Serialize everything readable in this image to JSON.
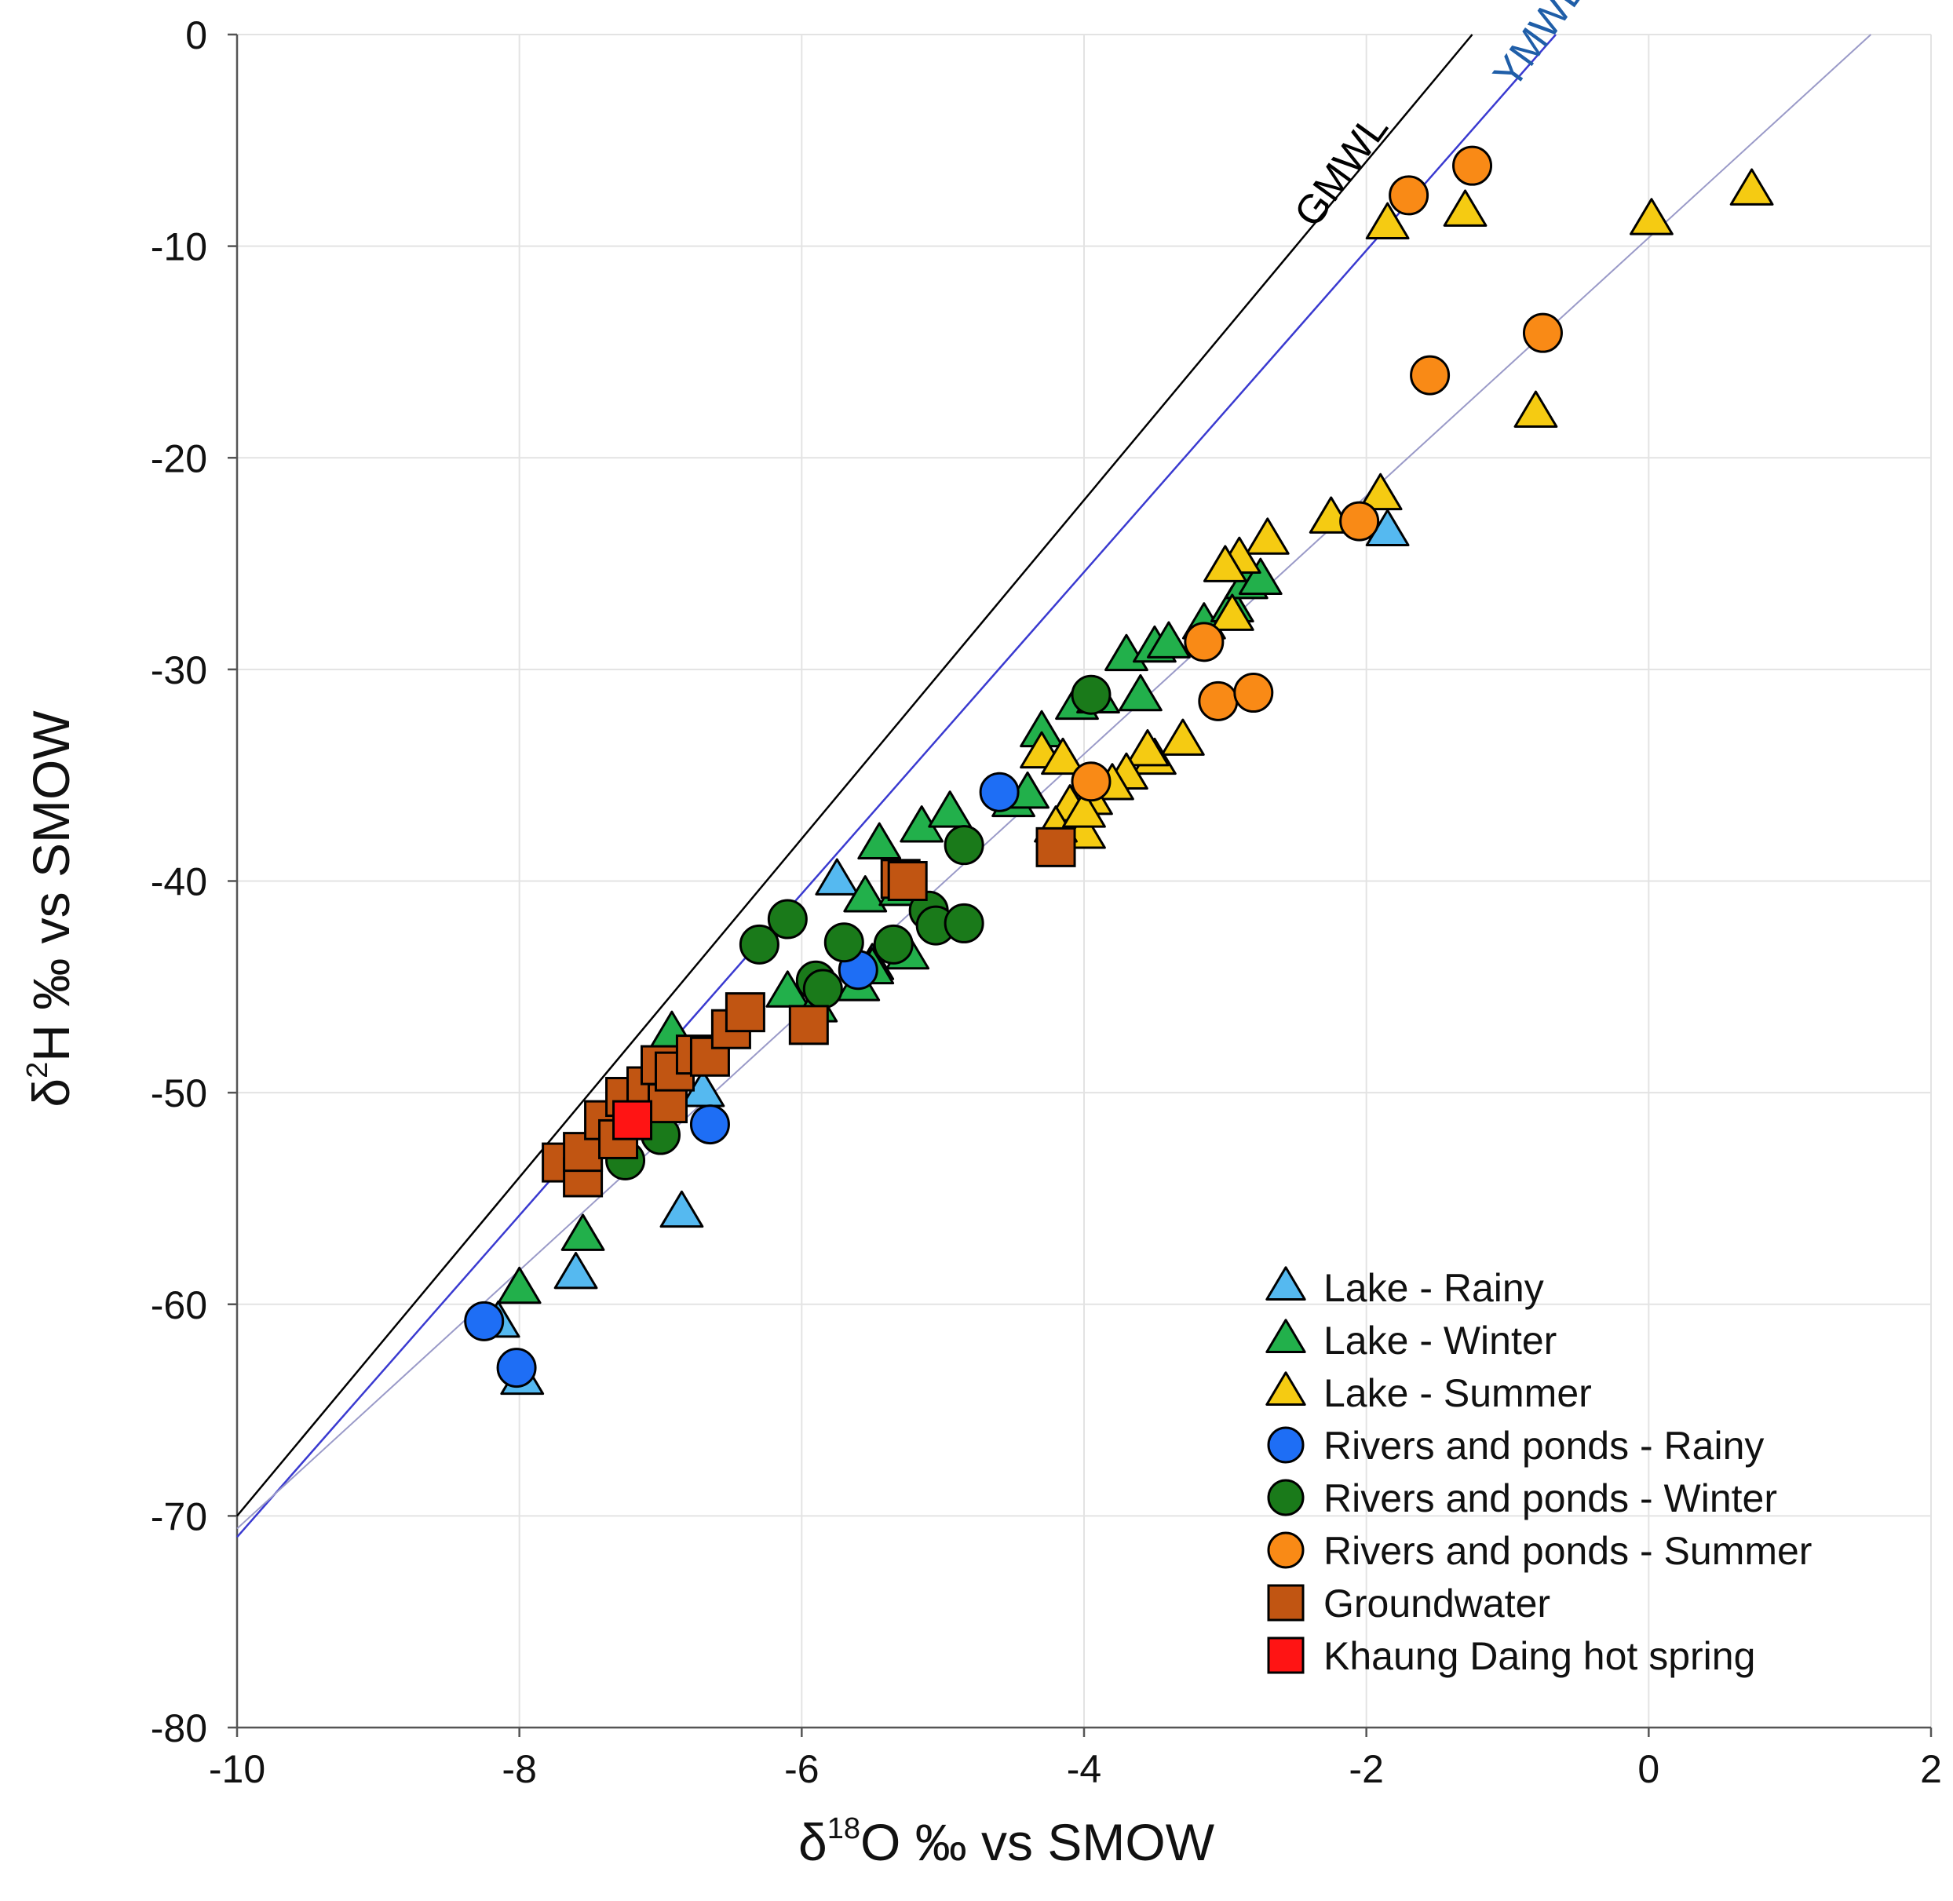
{
  "chart_data": {
    "type": "scatter",
    "xlabel": "δ18O ‰ vs SMOW",
    "ylabel": "δ2H ‰ vs SMOW",
    "xlabel_parts": {
      "prefix": "δ",
      "sup": "18",
      "suffix": "O ‰ vs SMOW"
    },
    "ylabel_parts": {
      "prefix": "δ",
      "sup": "2",
      "suffix": "H ‰ vs SMOW"
    },
    "xlim": [
      -10,
      2
    ],
    "ylim": [
      -80,
      0
    ],
    "x_ticks": [
      -10,
      -8,
      -6,
      -4,
      -2,
      0,
      2
    ],
    "y_ticks": [
      0,
      -10,
      -20,
      -30,
      -40,
      -50,
      -60,
      -70,
      -80
    ],
    "x_tick_labels": [
      "-10",
      "-8",
      "-6",
      "-4",
      "-2",
      "0",
      "2"
    ],
    "y_tick_labels": [
      "0",
      "-10",
      "-20",
      "-30",
      "-40",
      "-50",
      "-60",
      "-70",
      "-80"
    ],
    "grid": true,
    "legend_position": "bottom-right",
    "reference_lines": [
      {
        "name": "GMWL",
        "slope": 8,
        "intercept": 10,
        "color": "#000000",
        "label_color": "#000000",
        "label_at_x": -2.1,
        "rotate": -54
      },
      {
        "name": "YMWL",
        "slope": 7.6,
        "intercept": 5,
        "color": "#3a3ad0",
        "label_color": "#1f5ea8",
        "label_at_x": -0.7,
        "rotate": -54
      },
      {
        "name": "",
        "slope": 6.1,
        "intercept": -9.6,
        "color": "#9a9ac8",
        "label_color": "#9a9ac8",
        "label_at_x": 0,
        "rotate": 0
      }
    ],
    "series": [
      {
        "name": "Lake - Rainy",
        "marker": "triangle",
        "color": "#55b9f0",
        "points": [
          [
            -8.15,
            -60.9
          ],
          [
            -7.98,
            -63.6
          ],
          [
            -7.6,
            -58.6
          ],
          [
            -6.85,
            -55.7
          ],
          [
            -6.7,
            -50.0
          ],
          [
            -5.75,
            -40.0
          ],
          [
            -1.85,
            -23.5
          ],
          [
            -5.5,
            -44.0
          ]
        ]
      },
      {
        "name": "Lake - Winter",
        "marker": "triangle",
        "color": "#22b04b",
        "points": [
          [
            -8.0,
            -59.3
          ],
          [
            -7.55,
            -56.8
          ],
          [
            -6.92,
            -47.2
          ],
          [
            -6.1,
            -45.3
          ],
          [
            -5.9,
            -46.0
          ],
          [
            -5.6,
            -45.0
          ],
          [
            -5.5,
            -44.2
          ],
          [
            -5.55,
            -40.8
          ],
          [
            -5.45,
            -38.3
          ],
          [
            -5.3,
            -40.5
          ],
          [
            -5.25,
            -43.5
          ],
          [
            -5.15,
            -37.5
          ],
          [
            -4.95,
            -36.8
          ],
          [
            -4.5,
            -36.3
          ],
          [
            -4.4,
            -35.9
          ],
          [
            -4.3,
            -33.0
          ],
          [
            -4.05,
            -31.7
          ],
          [
            -3.9,
            -31.4
          ],
          [
            -3.7,
            -29.4
          ],
          [
            -3.6,
            -31.3
          ],
          [
            -3.5,
            -29.0
          ],
          [
            -3.4,
            -28.8
          ],
          [
            -3.15,
            -27.9
          ],
          [
            -2.95,
            -27.1
          ],
          [
            -2.85,
            -26.0
          ],
          [
            -2.75,
            -25.8
          ]
        ]
      },
      {
        "name": "Lake - Summer",
        "marker": "triangle",
        "color": "#f5cb12",
        "points": [
          [
            -1.85,
            -9.0
          ],
          [
            -1.3,
            -8.4
          ],
          [
            0.02,
            -8.8
          ],
          [
            0.73,
            -7.4
          ],
          [
            -0.8,
            -17.9
          ],
          [
            -1.9,
            -21.8
          ],
          [
            -2.25,
            -22.9
          ],
          [
            -2.7,
            -23.9
          ],
          [
            -2.9,
            -24.8
          ],
          [
            -3.0,
            -25.2
          ],
          [
            -2.95,
            -27.5
          ],
          [
            -3.3,
            -33.4
          ],
          [
            -3.5,
            -34.3
          ],
          [
            -3.55,
            -33.9
          ],
          [
            -3.7,
            -35.0
          ],
          [
            -3.8,
            -35.5
          ],
          [
            -3.95,
            -36.2
          ],
          [
            -4.0,
            -37.8
          ],
          [
            -4.1,
            -36.5
          ],
          [
            -4.2,
            -37.5
          ],
          [
            -4.3,
            -34.0
          ],
          [
            -4.15,
            -34.3
          ],
          [
            -4.0,
            -36.8
          ]
        ]
      },
      {
        "name": "Rivers and ponds - Rainy",
        "marker": "circle",
        "color": "#1e6ef5",
        "points": [
          [
            -8.25,
            -60.8
          ],
          [
            -8.02,
            -63.0
          ],
          [
            -6.65,
            -51.5
          ],
          [
            -4.6,
            -35.8
          ],
          [
            -5.6,
            -44.2
          ]
        ]
      },
      {
        "name": "Rivers and ponds - Winter",
        "marker": "circle",
        "color": "#1a7a1a",
        "points": [
          [
            -7.25,
            -53.2
          ],
          [
            -7.0,
            -52.0
          ],
          [
            -7.0,
            -49.4
          ],
          [
            -6.3,
            -43.0
          ],
          [
            -6.1,
            -41.8
          ],
          [
            -5.9,
            -44.7
          ],
          [
            -5.85,
            -45.1
          ],
          [
            -5.7,
            -42.9
          ],
          [
            -5.35,
            -43.0
          ],
          [
            -5.1,
            -41.4
          ],
          [
            -5.05,
            -42.1
          ],
          [
            -4.85,
            -42.0
          ],
          [
            -4.85,
            -38.3
          ],
          [
            -3.95,
            -31.2
          ]
        ]
      },
      {
        "name": "Rivers and ponds - Summer",
        "marker": "circle",
        "color": "#f98a16",
        "points": [
          [
            -1.7,
            -7.6
          ],
          [
            -1.25,
            -6.2
          ],
          [
            -1.55,
            -16.1
          ],
          [
            -0.75,
            -14.1
          ],
          [
            -2.05,
            -23.0
          ],
          [
            -3.15,
            -28.7
          ],
          [
            -3.05,
            -31.5
          ],
          [
            -2.8,
            -31.1
          ],
          [
            -3.95,
            -35.3
          ]
        ]
      },
      {
        "name": "Groundwater",
        "marker": "square",
        "color": "#c15512",
        "points": [
          [
            -7.7,
            -53.3
          ],
          [
            -7.55,
            -54.0
          ],
          [
            -7.55,
            -52.8
          ],
          [
            -7.4,
            -51.3
          ],
          [
            -7.3,
            -52.2
          ],
          [
            -7.25,
            -50.2
          ],
          [
            -7.1,
            -49.7
          ],
          [
            -7.0,
            -48.7
          ],
          [
            -6.95,
            -50.5
          ],
          [
            -6.9,
            -49.0
          ],
          [
            -6.75,
            -48.2
          ],
          [
            -6.65,
            -48.3
          ],
          [
            -6.5,
            -47.0
          ],
          [
            -6.4,
            -46.2
          ],
          [
            -5.95,
            -46.8
          ],
          [
            -5.3,
            -39.9
          ],
          [
            -5.25,
            -40.0
          ],
          [
            -4.2,
            -38.4
          ]
        ]
      },
      {
        "name": "Khaung Daing hot spring",
        "marker": "square",
        "color": "#ff1414",
        "points": [
          [
            -7.2,
            -51.3
          ]
        ]
      }
    ]
  }
}
